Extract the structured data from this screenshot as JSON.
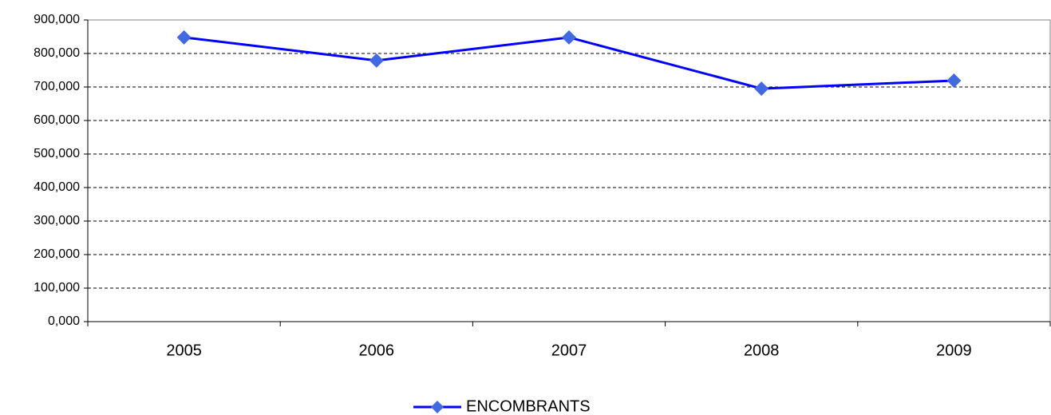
{
  "chart_data": {
    "type": "line",
    "categories": [
      "2005",
      "2006",
      "2007",
      "2008",
      "2009"
    ],
    "series": [
      {
        "name": "ENCOMBRANTS",
        "color": "#0000ff",
        "marker_color": "#4169e1",
        "values": [
          848000,
          779000,
          848000,
          695000,
          719000
        ]
      }
    ],
    "ylim": [
      0,
      900000
    ],
    "yticks": [
      {
        "value": 0,
        "label": "0,000"
      },
      {
        "value": 100000,
        "label": "100,000"
      },
      {
        "value": 200000,
        "label": "200,000"
      },
      {
        "value": 300000,
        "label": "300,000"
      },
      {
        "value": 400000,
        "label": "400,000"
      },
      {
        "value": 500000,
        "label": "500,000"
      },
      {
        "value": 600000,
        "label": "600,000"
      },
      {
        "value": 700000,
        "label": "700,000"
      },
      {
        "value": 800000,
        "label": "800,000"
      },
      {
        "value": 900000,
        "label": "900,000"
      }
    ],
    "grid": true,
    "legend": "bottom"
  }
}
